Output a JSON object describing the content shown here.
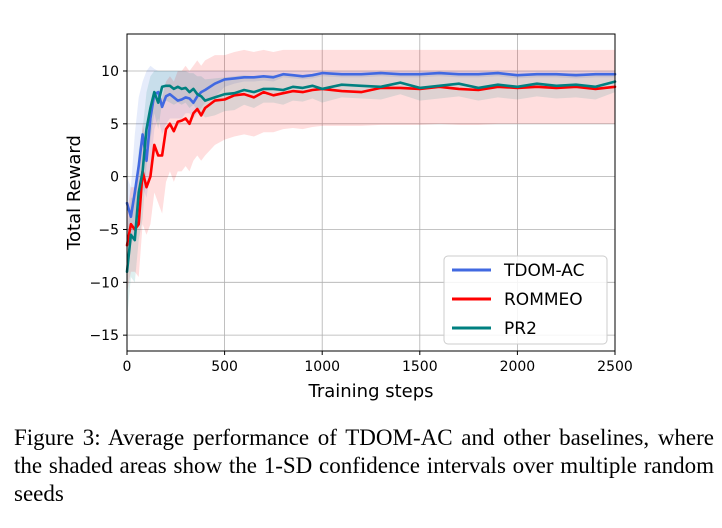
{
  "chart_data": {
    "type": "line",
    "xlabel": "Training steps",
    "ylabel": "Total Reward",
    "xlim": [
      0,
      2500
    ],
    "ylim": [
      -16.5,
      13.5
    ],
    "xticks": [
      0,
      500,
      1000,
      1500,
      2000,
      2500
    ],
    "yticks": [
      -15,
      -10,
      -5,
      0,
      5,
      10
    ],
    "grid": true,
    "legend_position": "lower-right",
    "x": [
      0,
      20,
      40,
      60,
      80,
      100,
      120,
      140,
      160,
      180,
      200,
      220,
      240,
      260,
      280,
      300,
      320,
      340,
      360,
      380,
      400,
      450,
      500,
      550,
      600,
      650,
      700,
      750,
      800,
      850,
      900,
      950,
      1000,
      1100,
      1200,
      1300,
      1400,
      1500,
      1600,
      1700,
      1800,
      1900,
      2000,
      2100,
      2200,
      2300,
      2400,
      2500
    ],
    "series": [
      {
        "name": "TDOM-AC",
        "color": "#4169e1",
        "values": [
          -2.5,
          -3.8,
          -1.5,
          1.0,
          4.0,
          1.5,
          5.5,
          7.8,
          8.0,
          6.6,
          7.6,
          7.8,
          7.5,
          7.2,
          7.3,
          7.5,
          7.4,
          7.0,
          7.6,
          8.0,
          8.2,
          8.8,
          9.2,
          9.3,
          9.4,
          9.4,
          9.5,
          9.4,
          9.7,
          9.6,
          9.5,
          9.6,
          9.8,
          9.7,
          9.7,
          9.8,
          9.7,
          9.7,
          9.8,
          9.7,
          9.7,
          9.8,
          9.6,
          9.7,
          9.7,
          9.6,
          9.7,
          9.7
        ],
        "upper": [
          0.0,
          -1.0,
          4.0,
          7.5,
          9.0,
          10.0,
          10.5,
          10.2,
          10.0,
          10.0,
          10.0,
          10.0,
          10.0,
          10.0,
          10.0,
          10.0,
          10.0,
          10.0,
          10.0,
          10.0,
          10.0,
          10.0,
          10.0,
          10.0,
          10.0,
          10.0,
          10.0,
          10.0,
          10.0,
          10.0,
          10.0,
          10.0,
          10.0,
          10.0,
          10.0,
          10.0,
          10.0,
          10.0,
          10.0,
          10.0,
          10.0,
          10.0,
          10.0,
          10.0,
          10.0,
          10.0,
          10.0,
          10.0
        ],
        "lower": [
          -5.0,
          -6.5,
          -5.5,
          -3.0,
          -1.0,
          -2.0,
          0.5,
          4.5,
          5.5,
          4.0,
          5.0,
          5.5,
          5.5,
          5.5,
          5.5,
          6.0,
          6.0,
          5.5,
          6.0,
          6.5,
          7.0,
          7.5,
          8.5,
          8.8,
          9.0,
          9.0,
          9.1,
          9.0,
          9.4,
          9.3,
          9.2,
          9.3,
          9.5,
          9.4,
          9.4,
          9.5,
          9.4,
          9.4,
          9.5,
          9.4,
          9.4,
          9.5,
          9.3,
          9.4,
          9.4,
          9.3,
          9.4,
          9.4
        ]
      },
      {
        "name": "ROMMEO",
        "color": "#ff0000",
        "values": [
          -6.5,
          -4.5,
          -5.0,
          -4.5,
          0.5,
          -1.0,
          0.0,
          3.0,
          2.0,
          2.0,
          4.5,
          5.0,
          4.3,
          5.2,
          5.3,
          5.5,
          5.0,
          6.0,
          6.4,
          5.8,
          6.5,
          7.2,
          7.3,
          7.7,
          7.8,
          7.5,
          8.0,
          7.7,
          7.9,
          8.1,
          8.0,
          8.2,
          8.3,
          8.1,
          8.0,
          8.4,
          8.4,
          8.3,
          8.5,
          8.3,
          8.2,
          8.5,
          8.4,
          8.5,
          8.4,
          8.5,
          8.3,
          8.5
        ],
        "upper": [
          -3.5,
          -1.0,
          -1.0,
          0.0,
          5.0,
          3.5,
          4.5,
          7.5,
          7.0,
          7.5,
          9.0,
          9.5,
          9.0,
          10.0,
          10.0,
          10.5,
          10.0,
          10.5,
          11.0,
          10.5,
          11.0,
          11.5,
          11.5,
          11.8,
          12.0,
          11.8,
          12.0,
          11.8,
          12.0,
          12.0,
          12.0,
          12.0,
          12.0,
          12.0,
          12.0,
          12.0,
          12.0,
          12.0,
          12.0,
          12.0,
          12.0,
          12.0,
          12.0,
          12.0,
          12.0,
          12.0,
          12.0,
          12.0
        ],
        "lower": [
          -11.0,
          -9.0,
          -9.0,
          -9.5,
          -4.5,
          -5.5,
          -4.5,
          -1.5,
          -2.5,
          -3.5,
          -0.5,
          0.5,
          -0.5,
          0.5,
          0.5,
          1.0,
          0.5,
          1.5,
          2.0,
          1.5,
          2.0,
          3.0,
          3.5,
          3.8,
          4.0,
          3.8,
          4.2,
          4.2,
          4.5,
          4.6,
          4.5,
          4.7,
          4.8,
          4.8,
          4.8,
          4.9,
          4.9,
          4.9,
          5.0,
          4.9,
          4.9,
          5.0,
          5.0,
          5.0,
          5.0,
          5.0,
          5.0,
          5.0
        ]
      },
      {
        "name": "PR2",
        "color": "#008080",
        "values": [
          -9.0,
          -5.5,
          -6.0,
          -1.5,
          0.5,
          4.5,
          6.5,
          8.0,
          7.0,
          8.5,
          8.6,
          8.6,
          8.3,
          8.5,
          8.3,
          8.4,
          8.0,
          8.3,
          7.8,
          7.6,
          7.2,
          7.5,
          7.8,
          7.9,
          8.2,
          8.0,
          8.3,
          8.3,
          8.2,
          8.5,
          8.4,
          8.6,
          8.3,
          8.7,
          8.6,
          8.5,
          8.9,
          8.4,
          8.6,
          8.8,
          8.4,
          8.7,
          8.5,
          8.8,
          8.6,
          8.7,
          8.5,
          9.0
        ],
        "upper": [
          -5.5,
          -2.0,
          -2.0,
          2.5,
          4.5,
          8.0,
          9.5,
          10.0,
          10.0,
          10.0,
          10.0,
          10.0,
          10.0,
          10.0,
          10.0,
          10.0,
          9.8,
          9.8,
          9.5,
          9.5,
          9.2,
          9.3,
          9.4,
          9.5,
          9.6,
          9.5,
          9.6,
          9.6,
          9.6,
          9.7,
          9.6,
          9.7,
          9.6,
          9.8,
          9.7,
          9.7,
          9.8,
          9.6,
          9.7,
          9.8,
          9.6,
          9.8,
          9.7,
          9.8,
          9.7,
          9.8,
          9.7,
          9.8
        ],
        "lower": [
          -13.5,
          -9.5,
          -10.0,
          -6.0,
          -4.0,
          1.0,
          3.5,
          6.0,
          4.5,
          7.0,
          7.2,
          7.0,
          6.8,
          7.0,
          6.8,
          7.0,
          6.5,
          6.8,
          6.3,
          6.0,
          5.6,
          5.8,
          6.2,
          6.3,
          6.8,
          6.5,
          7.0,
          7.0,
          6.8,
          7.2,
          7.1,
          7.4,
          7.0,
          7.5,
          7.4,
          7.3,
          7.8,
          7.2,
          7.4,
          7.6,
          7.2,
          7.5,
          7.3,
          7.6,
          7.4,
          7.5,
          7.3,
          8.0
        ]
      }
    ]
  },
  "caption": "Figure 3: Average performance of TDOM-AC and other baselines, where the shaded areas show the 1-SD confidence intervals over multiple random seeds"
}
